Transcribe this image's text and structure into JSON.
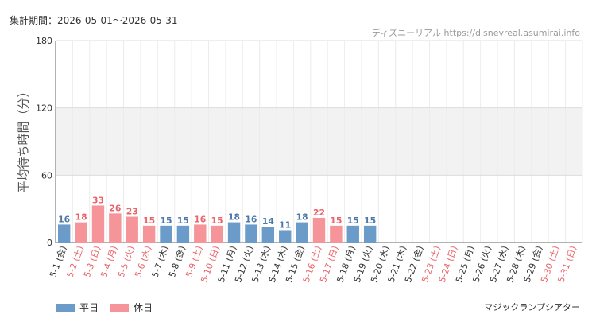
{
  "period_text": "集計期間：2026-05-01～2026-05-31",
  "site_text": "ディズニーリアル https://disneyreal.asumirai.info",
  "attraction_name": "マジックランプシアター",
  "legend": [
    {
      "label": "平日",
      "color": "#6b9bc8"
    },
    {
      "label": "休日",
      "color": "#f5959a"
    }
  ],
  "chart_data": {
    "type": "bar",
    "ylabel": "平均待ち時間（分）",
    "ylim": [
      0,
      180
    ],
    "yticks": [
      0,
      60,
      120,
      180
    ],
    "grid": true,
    "legend_position": "bottom-left",
    "categories": [
      "5-1 (金)",
      "5-2 (土)",
      "5-3 (日)",
      "5-4 (月)",
      "5-5 (火)",
      "5-6 (水)",
      "5-7 (木)",
      "5-8 (金)",
      "5-9 (土)",
      "5-10 (日)",
      "5-11 (月)",
      "5-12 (火)",
      "5-13 (水)",
      "5-14 (木)",
      "5-15 (金)",
      "5-16 (土)",
      "5-17 (日)",
      "5-18 (月)",
      "5-19 (火)",
      "5-20 (水)",
      "5-21 (木)",
      "5-22 (金)",
      "5-23 (土)",
      "5-24 (日)",
      "5-25 (月)",
      "5-26 (火)",
      "5-27 (水)",
      "5-28 (木)",
      "5-29 (金)",
      "5-30 (土)",
      "5-31 (日)"
    ],
    "values": [
      16,
      18,
      33,
      26,
      23,
      15,
      15,
      15,
      16,
      15,
      18,
      16,
      14,
      11,
      18,
      22,
      15,
      15,
      15,
      null,
      null,
      null,
      null,
      null,
      null,
      null,
      null,
      null,
      null,
      null,
      null
    ],
    "day_type": [
      "平日",
      "休日",
      "休日",
      "休日",
      "休日",
      "休日",
      "平日",
      "平日",
      "休日",
      "休日",
      "平日",
      "平日",
      "平日",
      "平日",
      "平日",
      "休日",
      "休日",
      "平日",
      "平日",
      "平日",
      "平日",
      "平日",
      "休日",
      "休日",
      "平日",
      "平日",
      "平日",
      "平日",
      "平日",
      "休日",
      "休日"
    ],
    "colors": {
      "平日": "#6b9bc8",
      "休日": "#f5959a"
    },
    "label_colors": {
      "平日": "#4a78a8",
      "休日": "#e8646a"
    },
    "tick_colors": {
      "平日": "#333333",
      "休日": "#e8646a"
    }
  }
}
